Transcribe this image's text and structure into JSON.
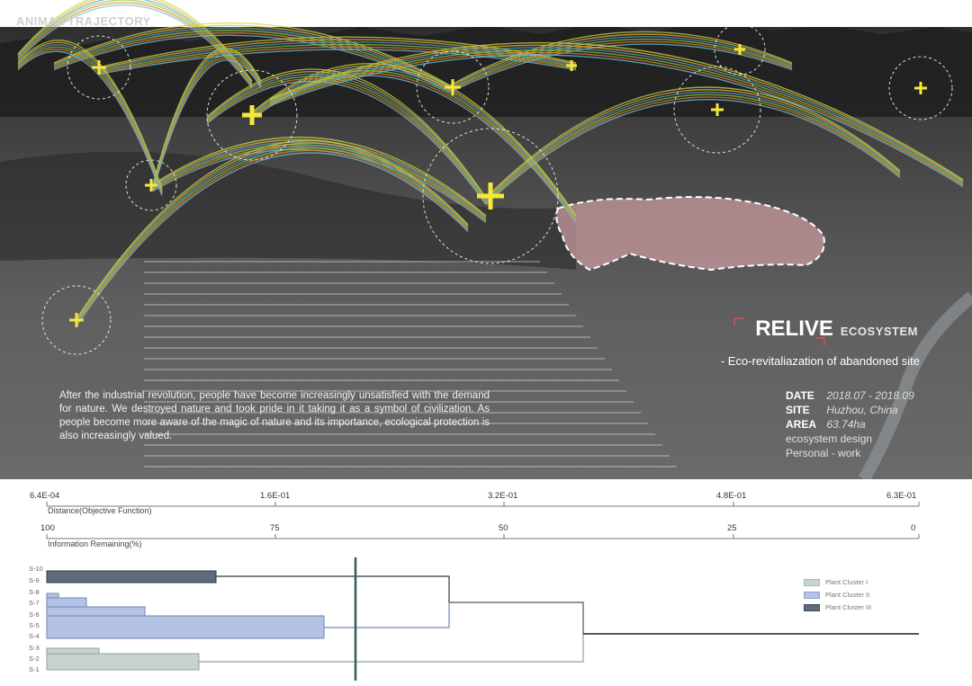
{
  "hero": {
    "title": "ANIMAL TRAJECTORY",
    "brand": "RELIVE",
    "brand_suffix": "ECOSYSTEM",
    "subtitle": "- Eco-revitaliazation of abandoned site",
    "intro": "After the industrial revolution, people have become increasingly unsatisfied with the demand for nature. We destroyed nature and took pride in it taking it as a symbol of civilization. As people become more aware of the magic of nature and its importance, ecological protection is also increasingly valued.",
    "meta": {
      "date_label": "DATE",
      "date_value": "2018.07 - 2018.09",
      "site_label": "SITE",
      "site_value": "Huzhou, China",
      "area_label": "AREA",
      "area_value": "63.74ha",
      "line1": "ecosystem design",
      "line2": "Personal - work"
    }
  },
  "dendrogram": {
    "distance_ticks": [
      "6.4E-04",
      "1.6E-01",
      "3.2E-01",
      "4.8E-01",
      "6.3E-01"
    ],
    "distance_label": "Distance(Objective Function)",
    "info_ticks": [
      "100",
      "75",
      "50",
      "25",
      "0"
    ],
    "info_label": "Information Remaining(%)",
    "leaves": [
      "S-10",
      "S-9",
      "S-8",
      "S-7",
      "S-6",
      "S-5",
      "S-4",
      "S-3",
      "S-2",
      "S-1"
    ],
    "legend": [
      "Plant Cluster I",
      "Plant Cluster II",
      "Plant Cluster III"
    ],
    "colors": {
      "cluster1": "#c7d3cf",
      "cluster2": "#b4c3e3",
      "cluster3": "#5d6b7b",
      "cut_line": "#2f5e58"
    }
  }
}
